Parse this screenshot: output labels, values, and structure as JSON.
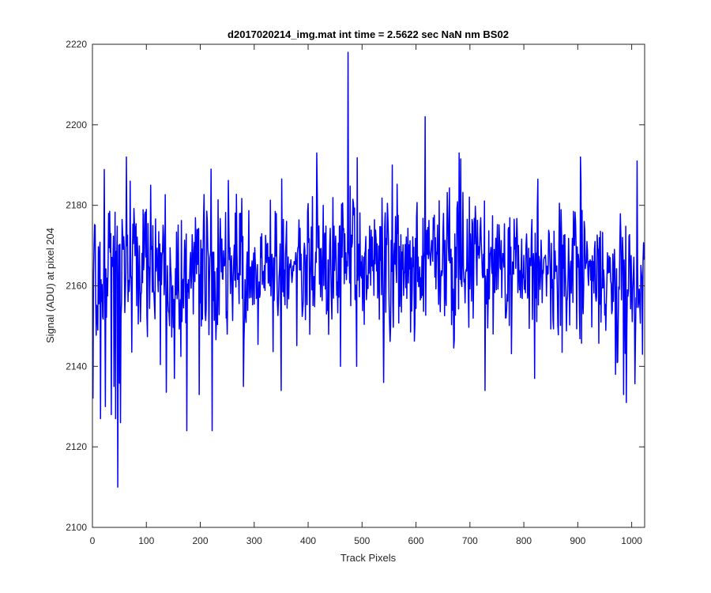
{
  "chart_data": {
    "type": "line",
    "title": "d2017020214_img.mat int time = 2.5622 sec  NaN nm BS02",
    "xlabel": "Track Pixels",
    "ylabel": "Signal (ADU) at pixel 204",
    "xlim": [
      0,
      1024
    ],
    "ylim": [
      2100,
      2220
    ],
    "xticks": [
      0,
      100,
      200,
      300,
      400,
      500,
      600,
      700,
      800,
      900,
      1000
    ],
    "yticks": [
      2100,
      2120,
      2140,
      2160,
      2180,
      2200,
      2220
    ],
    "grid": false,
    "line_color": "#0000ff",
    "series": [
      {
        "x_start": 1,
        "x_step": 1,
        "length": 1024,
        "seed": 20170202,
        "baseline": 2163,
        "noise_sd": 9,
        "features": [
          {
            "x": 1,
            "y": 2132
          },
          {
            "x": 5,
            "y": 2175
          },
          {
            "x": 10,
            "y": 2149
          },
          {
            "x": 15,
            "y": 2127
          },
          {
            "x": 24,
            "y": 2130
          },
          {
            "x": 30,
            "y": 2178
          },
          {
            "x": 35,
            "y": 2128
          },
          {
            "x": 40,
            "y": 2135
          },
          {
            "x": 43,
            "y": 2127
          },
          {
            "x": 47,
            "y": 2110
          },
          {
            "x": 52,
            "y": 2126
          },
          {
            "x": 70,
            "y": 2186
          },
          {
            "x": 108,
            "y": 2185
          },
          {
            "x": 175,
            "y": 2124
          },
          {
            "x": 198,
            "y": 2133
          },
          {
            "x": 220,
            "y": 2189
          },
          {
            "x": 222,
            "y": 2124
          },
          {
            "x": 280,
            "y": 2135
          },
          {
            "x": 350,
            "y": 2134
          },
          {
            "x": 416,
            "y": 2193
          },
          {
            "x": 460,
            "y": 2140
          },
          {
            "x": 474,
            "y": 2218
          },
          {
            "x": 490,
            "y": 2140
          },
          {
            "x": 540,
            "y": 2136
          },
          {
            "x": 556,
            "y": 2190
          },
          {
            "x": 617,
            "y": 2202
          },
          {
            "x": 680,
            "y": 2193
          },
          {
            "x": 728,
            "y": 2134
          },
          {
            "x": 820,
            "y": 2137
          },
          {
            "x": 905,
            "y": 2192
          },
          {
            "x": 970,
            "y": 2138
          },
          {
            "x": 985,
            "y": 2133
          },
          {
            "x": 990,
            "y": 2131
          },
          {
            "x": 1010,
            "y": 2191
          },
          {
            "x": 1020,
            "y": 2143
          }
        ]
      }
    ]
  }
}
